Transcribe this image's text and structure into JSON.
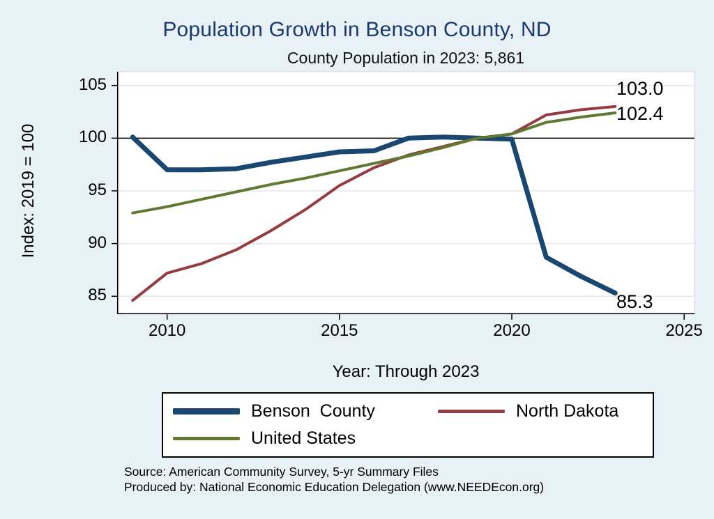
{
  "title": "Population Growth in Benson County, ND",
  "subtitle": "County Population in 2023: 5,861",
  "chart_data": {
    "type": "line",
    "title": "Population Growth in Benson County, ND",
    "subtitle": "County Population in 2023: 5,861",
    "xlabel": "Year: Through 2023",
    "ylabel": "Index: 2019 = 100",
    "xlim": [
      2008.55,
      2025.3
    ],
    "ylim": [
      83.3,
      106.3
    ],
    "x_ticks": [
      2010,
      2015,
      2020,
      2025
    ],
    "y_ticks": [
      85,
      90,
      95,
      100,
      105
    ],
    "ref_line": 100,
    "grid": true,
    "legend_position": "bottom",
    "x": [
      2009,
      2010,
      2011,
      2012,
      2013,
      2014,
      2015,
      2016,
      2017,
      2018,
      2019,
      2020,
      2021,
      2022,
      2023
    ],
    "series": [
      {
        "name": "Benson  County",
        "color": "#1a476f",
        "width": 7,
        "values": [
          100.1,
          97.0,
          97.0,
          97.1,
          97.7,
          98.2,
          98.7,
          98.8,
          100.0,
          100.1,
          100.0,
          99.9,
          88.7,
          86.9,
          85.3
        ]
      },
      {
        "name": "North Dakota",
        "color": "#953b42",
        "width": 4,
        "values": [
          84.6,
          87.2,
          88.1,
          89.4,
          91.2,
          93.2,
          95.5,
          97.2,
          98.4,
          99.2,
          100.0,
          100.4,
          102.2,
          102.7,
          103.0
        ]
      },
      {
        "name": "United States",
        "color": "#60782f",
        "width": 4,
        "values": [
          92.9,
          93.5,
          94.2,
          94.9,
          95.6,
          96.2,
          96.9,
          97.6,
          98.3,
          99.1,
          100.0,
          100.4,
          101.5,
          102.0,
          102.4
        ]
      }
    ],
    "end_labels": [
      {
        "series": "North Dakota",
        "text": "103.0"
      },
      {
        "series": "United States",
        "text": "102.4"
      },
      {
        "series": "Benson County",
        "text": "85.3"
      }
    ]
  },
  "annotations": {
    "nd": "103.0",
    "us": "102.4",
    "benson": "85.3"
  },
  "source_line1": "Source: American Community Survey, 5-yr Summary Files",
  "source_line2": "Produced by: National Economic Education Delegation (www.NEEDEcon.org)",
  "colors": {
    "background": "#e8f1f5",
    "plot_background": "#ffffff",
    "gridline": "#dde9ee",
    "title": "#1a3a6d",
    "benson": "#1a476f",
    "north_dakota": "#953b42",
    "united_states": "#60782f"
  }
}
